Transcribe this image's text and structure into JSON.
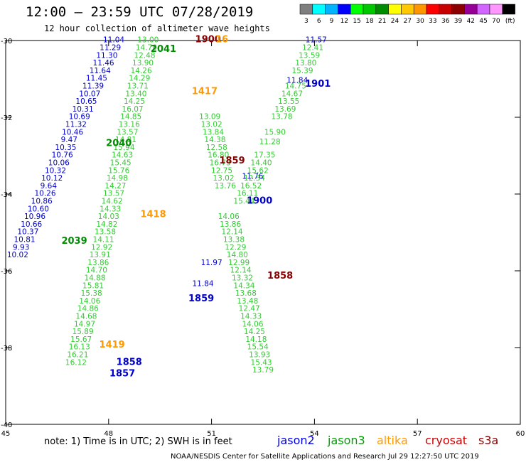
{
  "title": "12:00 – 23:59 UTC 07/28/2019",
  "subtitle": "12 hour collection of altimeter wave heights",
  "colorbar": {
    "labels": [
      "3",
      "6",
      "9",
      "12",
      "15",
      "18",
      "21",
      "24",
      "27",
      "30",
      "33",
      "36",
      "39",
      "42",
      "45",
      "70",
      "(ft)"
    ],
    "colors": [
      "#7f7f7f",
      "#00ffff",
      "#00b4ff",
      "#0000ff",
      "#00ff00",
      "#00c800",
      "#008c00",
      "#ffff00",
      "#ffc800",
      "#ff9600",
      "#ff0000",
      "#c80000",
      "#8c0000",
      "#960096",
      "#d264ff",
      "#ff96ff",
      "#000000"
    ]
  },
  "note": "note:  1) Time is in UTC;  2) SWH is in feet",
  "satellites": [
    {
      "name": "jason2",
      "color": "#0000dd"
    },
    {
      "name": "jason3",
      "color": "#00a000"
    },
    {
      "name": "altika",
      "color": "#ff9900"
    },
    {
      "name": "cryosat",
      "color": "#cc0000"
    },
    {
      "name": "s3a",
      "color": "#880000"
    }
  ],
  "footer": "NOAA/NESDIS Center for Satellite Applications and Research    Jul 29 12:27:50 UTC 2019",
  "chart_data": {
    "type": "scatter",
    "xlim": [
      45,
      60
    ],
    "ylim": [
      -40,
      -30
    ],
    "xticks": [
      "45",
      "48",
      "51",
      "54",
      "57",
      "60"
    ],
    "yticks": [
      "-30",
      "-32",
      "-34",
      "-36",
      "-38",
      "-40"
    ],
    "series": [
      {
        "name": "jason2",
        "color": "#0000cc",
        "points": [
          {
            "x": 48.15,
            "y": -30.05,
            "label": "11.04"
          },
          {
            "x": 48.05,
            "y": -30.25,
            "label": "11.29"
          },
          {
            "x": 47.95,
            "y": -30.45,
            "label": "11.30"
          },
          {
            "x": 47.85,
            "y": -30.65,
            "label": "11.46"
          },
          {
            "x": 47.75,
            "y": -30.85,
            "label": "11.64"
          },
          {
            "x": 47.65,
            "y": -31.05,
            "label": "11.45"
          },
          {
            "x": 47.55,
            "y": -31.25,
            "label": "11.39"
          },
          {
            "x": 47.45,
            "y": -31.45,
            "label": "10.07"
          },
          {
            "x": 47.35,
            "y": -31.65,
            "label": "10.65"
          },
          {
            "x": 47.25,
            "y": -31.85,
            "label": "10.31"
          },
          {
            "x": 47.15,
            "y": -32.05,
            "label": "10.69"
          },
          {
            "x": 47.05,
            "y": -32.25,
            "label": "11.32"
          },
          {
            "x": 46.95,
            "y": -32.45,
            "label": "10.46"
          },
          {
            "x": 46.85,
            "y": -32.65,
            "label": "9.47"
          },
          {
            "x": 46.75,
            "y": -32.85,
            "label": "10.35"
          },
          {
            "x": 46.65,
            "y": -33.05,
            "label": "10.76"
          },
          {
            "x": 46.55,
            "y": -33.25,
            "label": "10.06"
          },
          {
            "x": 46.45,
            "y": -33.45,
            "label": "10.32"
          },
          {
            "x": 46.35,
            "y": -33.65,
            "label": "10.12"
          },
          {
            "x": 46.25,
            "y": -33.85,
            "label": "9.64"
          },
          {
            "x": 46.15,
            "y": -34.05,
            "label": "10.26"
          },
          {
            "x": 46.05,
            "y": -34.25,
            "label": "10.86"
          },
          {
            "x": 45.95,
            "y": -34.45,
            "label": "10.60"
          },
          {
            "x": 45.85,
            "y": -34.65,
            "label": "10.96"
          },
          {
            "x": 45.75,
            "y": -34.85,
            "label": "10.66"
          },
          {
            "x": 45.65,
            "y": -35.05,
            "label": "10.37"
          },
          {
            "x": 45.55,
            "y": -35.25,
            "label": "10.81"
          },
          {
            "x": 45.45,
            "y": -35.45,
            "label": "9.93"
          },
          {
            "x": 45.35,
            "y": -35.65,
            "label": "10.02"
          },
          {
            "x": 54.05,
            "y": -30.05,
            "label": "11.57"
          },
          {
            "x": 53.5,
            "y": -31.1,
            "label": "11.84"
          },
          {
            "x": 52.2,
            "y": -33.6,
            "label": "11.76"
          },
          {
            "x": 51.0,
            "y": -35.85,
            "label": "11.97"
          },
          {
            "x": 50.75,
            "y": -36.4,
            "label": "11.84"
          }
        ]
      },
      {
        "name": "jason3",
        "color": "#33cc33",
        "points": [
          {
            "x": 53.95,
            "y": -30.25,
            "label": "12.41"
          },
          {
            "x": 53.85,
            "y": -30.45,
            "label": "13.59"
          },
          {
            "x": 53.75,
            "y": -30.65,
            "label": "13.80"
          },
          {
            "x": 53.65,
            "y": -30.85,
            "label": "15.39"
          },
          {
            "x": 53.45,
            "y": -31.25,
            "label": "14.75"
          },
          {
            "x": 53.35,
            "y": -31.45,
            "label": "14.67"
          },
          {
            "x": 53.25,
            "y": -31.65,
            "label": "13.55"
          },
          {
            "x": 53.15,
            "y": -31.85,
            "label": "13.69"
          },
          {
            "x": 53.05,
            "y": -32.05,
            "label": "13.78"
          },
          {
            "x": 52.85,
            "y": -32.45,
            "label": "15.90"
          },
          {
            "x": 52.7,
            "y": -32.7,
            "label": "11.28"
          },
          {
            "x": 52.55,
            "y": -33.05,
            "label": "17.35"
          },
          {
            "x": 52.45,
            "y": -33.25,
            "label": "14.40"
          },
          {
            "x": 52.35,
            "y": -33.45,
            "label": "15.62"
          },
          {
            "x": 52.25,
            "y": -33.65,
            "label": "12.54"
          },
          {
            "x": 52.15,
            "y": -33.85,
            "label": "16.52"
          },
          {
            "x": 52.05,
            "y": -34.05,
            "label": "16.11"
          },
          {
            "x": 51.95,
            "y": -34.25,
            "label": "15.44"
          },
          {
            "x": 49.15,
            "y": -30.05,
            "label": "13.00"
          },
          {
            "x": 49.1,
            "y": -30.25,
            "label": "14.70"
          },
          {
            "x": 49.05,
            "y": -30.45,
            "label": "12.48"
          },
          {
            "x": 49.0,
            "y": -30.65,
            "label": "13.90"
          },
          {
            "x": 48.95,
            "y": -30.85,
            "label": "14.26"
          },
          {
            "x": 48.9,
            "y": -31.05,
            "label": "14.29"
          },
          {
            "x": 48.85,
            "y": -31.25,
            "label": "13.71"
          },
          {
            "x": 48.8,
            "y": -31.45,
            "label": "13.40"
          },
          {
            "x": 48.75,
            "y": -31.65,
            "label": "14.25"
          },
          {
            "x": 48.7,
            "y": -31.85,
            "label": "16.07"
          },
          {
            "x": 48.65,
            "y": -32.05,
            "label": "14.85"
          },
          {
            "x": 48.6,
            "y": -32.25,
            "label": "13.16"
          },
          {
            "x": 48.55,
            "y": -32.45,
            "label": "13.57"
          },
          {
            "x": 48.5,
            "y": -32.65,
            "label": "14.81"
          },
          {
            "x": 48.45,
            "y": -32.85,
            "label": "15.94"
          },
          {
            "x": 48.4,
            "y": -33.05,
            "label": "14.63"
          },
          {
            "x": 48.35,
            "y": -33.25,
            "label": "15.45"
          },
          {
            "x": 48.3,
            "y": -33.45,
            "label": "15.76"
          },
          {
            "x": 48.25,
            "y": -33.65,
            "label": "14.98"
          },
          {
            "x": 48.2,
            "y": -33.85,
            "label": "14.27"
          },
          {
            "x": 48.15,
            "y": -34.05,
            "label": "13.57"
          },
          {
            "x": 48.1,
            "y": -34.25,
            "label": "14.62"
          },
          {
            "x": 48.05,
            "y": -34.45,
            "label": "14.33"
          },
          {
            "x": 48.0,
            "y": -34.65,
            "label": "14.03"
          },
          {
            "x": 47.95,
            "y": -34.85,
            "label": "14.82"
          },
          {
            "x": 47.9,
            "y": -35.05,
            "label": "13.58"
          },
          {
            "x": 47.85,
            "y": -35.25,
            "label": "14.11"
          },
          {
            "x": 47.8,
            "y": -35.45,
            "label": "12.92"
          },
          {
            "x": 47.75,
            "y": -35.65,
            "label": "13.91"
          },
          {
            "x": 47.7,
            "y": -35.85,
            "label": "13.86"
          },
          {
            "x": 47.65,
            "y": -36.05,
            "label": "14.70"
          },
          {
            "x": 47.6,
            "y": -36.25,
            "label": "14.88"
          },
          {
            "x": 47.55,
            "y": -36.45,
            "label": "15.81"
          },
          {
            "x": 47.5,
            "y": -36.65,
            "label": "15.38"
          },
          {
            "x": 47.45,
            "y": -36.85,
            "label": "14.06"
          },
          {
            "x": 47.4,
            "y": -37.05,
            "label": "14.86"
          },
          {
            "x": 47.35,
            "y": -37.25,
            "label": "14.68"
          },
          {
            "x": 47.3,
            "y": -37.45,
            "label": "14.97"
          },
          {
            "x": 47.25,
            "y": -37.65,
            "label": "15.89"
          },
          {
            "x": 47.2,
            "y": -37.85,
            "label": "15.67"
          },
          {
            "x": 47.15,
            "y": -38.05,
            "label": "16.13"
          },
          {
            "x": 47.1,
            "y": -38.25,
            "label": "16.21"
          },
          {
            "x": 47.05,
            "y": -38.45,
            "label": "16.12"
          },
          {
            "x": 50.95,
            "y": -32.05,
            "label": "13.09"
          },
          {
            "x": 51.0,
            "y": -32.25,
            "label": "13.02"
          },
          {
            "x": 51.05,
            "y": -32.45,
            "label": "13.84"
          },
          {
            "x": 51.1,
            "y": -32.65,
            "label": "14.38"
          },
          {
            "x": 51.15,
            "y": -32.85,
            "label": "12.58"
          },
          {
            "x": 51.2,
            "y": -33.05,
            "label": "16.80"
          },
          {
            "x": 51.25,
            "y": -33.25,
            "label": "16.73"
          },
          {
            "x": 51.3,
            "y": -33.45,
            "label": "12.75"
          },
          {
            "x": 51.35,
            "y": -33.65,
            "label": "13.02"
          },
          {
            "x": 51.4,
            "y": -33.85,
            "label": "13.76"
          },
          {
            "x": 51.5,
            "y": -34.65,
            "label": "14.06"
          },
          {
            "x": 51.55,
            "y": -34.85,
            "label": "13.86"
          },
          {
            "x": 51.6,
            "y": -35.05,
            "label": "12.14"
          },
          {
            "x": 51.65,
            "y": -35.25,
            "label": "13.38"
          },
          {
            "x": 51.7,
            "y": -35.45,
            "label": "12.29"
          },
          {
            "x": 51.75,
            "y": -35.65,
            "label": "14.80"
          },
          {
            "x": 51.8,
            "y": -35.85,
            "label": "12.99"
          },
          {
            "x": 51.85,
            "y": -36.05,
            "label": "12.14"
          },
          {
            "x": 51.9,
            "y": -36.25,
            "label": "13.32"
          },
          {
            "x": 51.95,
            "y": -36.45,
            "label": "14.34"
          },
          {
            "x": 52.0,
            "y": -36.65,
            "label": "13.68"
          },
          {
            "x": 52.05,
            "y": -36.85,
            "label": "13.48"
          },
          {
            "x": 52.1,
            "y": -37.05,
            "label": "12.47"
          },
          {
            "x": 52.15,
            "y": -37.25,
            "label": "14.33"
          },
          {
            "x": 52.2,
            "y": -37.45,
            "label": "14.06"
          },
          {
            "x": 52.25,
            "y": -37.65,
            "label": "14.25"
          },
          {
            "x": 52.3,
            "y": -37.85,
            "label": "14.18"
          },
          {
            "x": 52.35,
            "y": -38.05,
            "label": "15.54"
          },
          {
            "x": 52.4,
            "y": -38.25,
            "label": "13.93"
          },
          {
            "x": 52.45,
            "y": -38.45,
            "label": "15.43"
          },
          {
            "x": 52.5,
            "y": -38.65,
            "label": "13.79"
          }
        ]
      },
      {
        "name": "cryosat",
        "color": "#880000",
        "points": [
          {
            "x": 51.6,
            "y": -33.2,
            "label": "1859"
          },
          {
            "x": 53.0,
            "y": -36.2,
            "label": "1858"
          },
          {
            "x": 50.9,
            "y": -30.05,
            "label": "1900"
          }
        ]
      },
      {
        "name": "altika",
        "color": "#ff9900",
        "points": [
          {
            "x": 50.8,
            "y": -31.4,
            "label": "1417"
          },
          {
            "x": 49.3,
            "y": -34.6,
            "label": "1418"
          },
          {
            "x": 48.1,
            "y": -38.0,
            "label": "1419"
          },
          {
            "x": 51.3,
            "y": -30.05,
            "label": "16"
          }
        ]
      },
      {
        "name": "pass_labels",
        "color": "#0000cc",
        "points": [
          {
            "x": 54.1,
            "y": -31.2,
            "label": "1901"
          },
          {
            "x": 52.4,
            "y": -34.25,
            "label": "1900"
          },
          {
            "x": 50.7,
            "y": -36.8,
            "label": "1859"
          },
          {
            "x": 48.6,
            "y": -38.45,
            "label": "1858"
          },
          {
            "x": 48.4,
            "y": -38.75,
            "label": "1857"
          }
        ]
      },
      {
        "name": "jason3_labels",
        "color": "#008c00",
        "points": [
          {
            "x": 49.6,
            "y": -30.3,
            "label": "2041"
          },
          {
            "x": 48.3,
            "y": -32.75,
            "label": "2040"
          },
          {
            "x": 47.0,
            "y": -35.3,
            "label": "2039"
          }
        ]
      }
    ]
  }
}
